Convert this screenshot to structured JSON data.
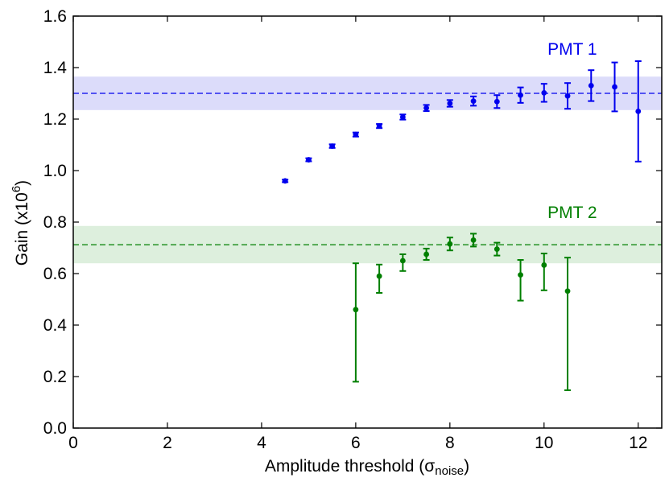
{
  "chart_data": {
    "type": "scatter",
    "title": "",
    "xlabel": "Amplitude threshold (σ",
    "xlabel_sub": "noise",
    "xlabel_close": ")",
    "ylabel": "Gain (x10",
    "ylabel_sup": "6",
    "ylabel_close": ")",
    "xlim": [
      0,
      12.5
    ],
    "ylim": [
      0.0,
      1.6
    ],
    "xticks": [
      0,
      2,
      4,
      6,
      8,
      10,
      12
    ],
    "yticks": [
      0.0,
      0.2,
      0.4,
      0.6,
      0.8,
      1.0,
      1.2,
      1.4,
      1.6
    ],
    "xtick_labels": [
      "0",
      "2",
      "4",
      "6",
      "8",
      "10",
      "12"
    ],
    "ytick_labels": [
      "0.0",
      "0.2",
      "0.4",
      "0.6",
      "0.8",
      "1.0",
      "1.2",
      "1.4",
      "1.6"
    ],
    "series": [
      {
        "name": "PMT 1",
        "color": "#0000ee",
        "band_color": "#dcdcfa",
        "reference": 1.3,
        "band": [
          1.235,
          1.365
        ],
        "x": [
          4.5,
          5.0,
          5.5,
          6.0,
          6.5,
          7.0,
          7.5,
          8.0,
          8.5,
          9.0,
          9.5,
          10.0,
          10.5,
          11.0,
          11.5,
          12.0
        ],
        "y": [
          0.96,
          1.042,
          1.095,
          1.14,
          1.173,
          1.208,
          1.243,
          1.261,
          1.27,
          1.268,
          1.293,
          1.302,
          1.29,
          1.33,
          1.325,
          1.23
        ],
        "err": [
          0.005,
          0.006,
          0.007,
          0.008,
          0.008,
          0.01,
          0.012,
          0.013,
          0.018,
          0.025,
          0.03,
          0.035,
          0.05,
          0.06,
          0.095,
          0.195
        ]
      },
      {
        "name": "PMT 2",
        "color": "#007f00",
        "band_color": "#ddefdd",
        "reference": 0.712,
        "band": [
          0.64,
          0.785
        ],
        "x": [
          6.0,
          6.5,
          7.0,
          7.5,
          8.0,
          8.5,
          9.0,
          9.5,
          10.0,
          10.5
        ],
        "y": [
          0.46,
          0.59,
          0.65,
          0.675,
          0.715,
          0.73,
          0.695,
          0.595,
          0.633,
          0.532
        ],
        "err": [
          0.18,
          0.045,
          0.025,
          0.022,
          0.025,
          0.025,
          0.025,
          0.058,
          0.045,
          0.13
        ],
        "err_low": [
          0.28,
          0.065,
          0.04,
          0.022,
          0.025,
          0.025,
          0.025,
          0.1,
          0.098,
          0.385
        ]
      }
    ],
    "annotations": [
      {
        "text": "PMT 1",
        "x": 10.6,
        "y": 1.45,
        "color": "#0000ee"
      },
      {
        "text": "PMT 2",
        "x": 10.6,
        "y": 0.815,
        "color": "#007f00"
      }
    ]
  }
}
